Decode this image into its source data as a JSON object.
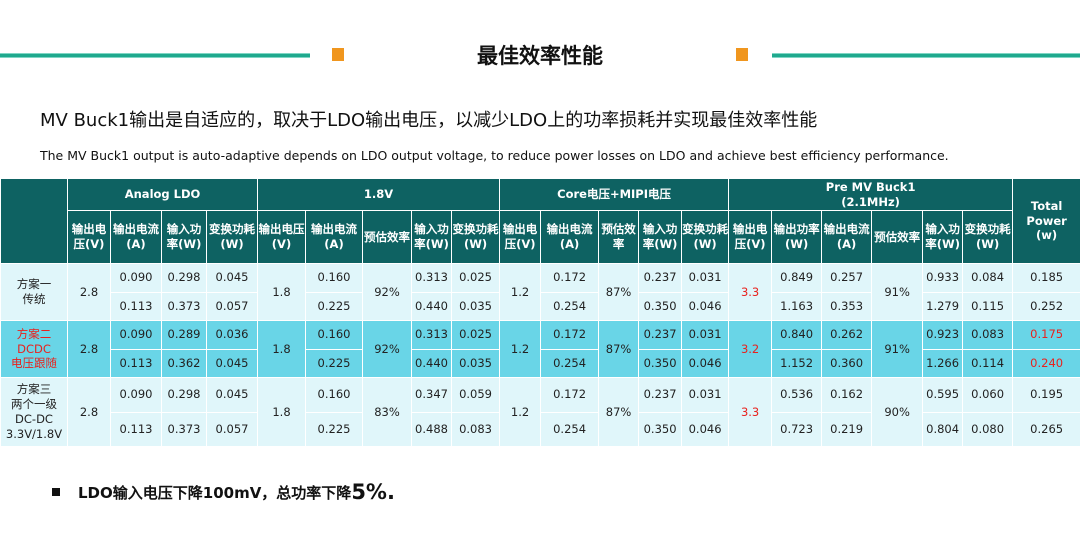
{
  "title": "最佳效率性能",
  "subtitle_cn": "MV Buck1输出是自适应的，取决于LDO输出电压，以减少LDO上的功率损耗并实现最佳效率性能",
  "subtitle_en": "The MV Buck1 output is auto-adaptive depends on LDO output voltage, to reduce power losses on LDO and achieve best efficiency performance.",
  "colors": {
    "header": "#0e6262",
    "row": "#e0f6fa",
    "highlight": "#69d5e7",
    "accent_red": "#e8221e",
    "rule": "#20a98e",
    "marker": "#f0961e"
  },
  "table": {
    "groups": [
      "Analog LDO",
      "1.8V",
      "Core电压+MIPI电压",
      "Pre MV Buck1\n(2.1MHz)",
      "Total Power\n(w)"
    ],
    "columns": [
      "输出电压(V)",
      "输出电流(A)",
      "输入功率(W)",
      "变换功耗(W)",
      "输出电压(V)",
      "输出电流(A)",
      "预估效率",
      "输入功率(W)",
      "变换功耗(W)",
      "输出电压(V)",
      "输出电流(A)",
      "预估效率",
      "输入功率(W)",
      "变换功耗(W)",
      "输出电压(V)",
      "输出功率(W)",
      "输出电流(A)",
      "预估效率",
      "输入功率(W)",
      "变换功耗(W)"
    ],
    "schemes": [
      {
        "label": "方案一\n传统",
        "highlight": false,
        "label_red": false,
        "total_red": false,
        "ldo_vout": "2.8",
        "v18_vout": "1.8",
        "v18_eff": "92%",
        "core_vout": "1.2",
        "core_eff": "87%",
        "pre_vout": "3.3",
        "pre_eff": "91%",
        "rows": [
          [
            "0.090",
            "0.298",
            "0.045",
            "0.160",
            "0.313",
            "0.025",
            "0.172",
            "0.237",
            "0.031",
            "0.849",
            "0.257",
            "0.933",
            "0.084",
            "0.185"
          ],
          [
            "0.113",
            "0.373",
            "0.057",
            "0.225",
            "0.440",
            "0.035",
            "0.254",
            "0.350",
            "0.046",
            "1.163",
            "0.353",
            "1.279",
            "0.115",
            "0.252"
          ]
        ]
      },
      {
        "label": "方案二\nDCDC\n电压跟随",
        "highlight": true,
        "label_red": true,
        "total_red": true,
        "ldo_vout": "2.8",
        "v18_vout": "1.8",
        "v18_eff": "92%",
        "core_vout": "1.2",
        "core_eff": "87%",
        "pre_vout": "3.2",
        "pre_eff": "91%",
        "rows": [
          [
            "0.090",
            "0.289",
            "0.036",
            "0.160",
            "0.313",
            "0.025",
            "0.172",
            "0.237",
            "0.031",
            "0.840",
            "0.262",
            "0.923",
            "0.083",
            "0.175"
          ],
          [
            "0.113",
            "0.362",
            "0.045",
            "0.225",
            "0.440",
            "0.035",
            "0.254",
            "0.350",
            "0.046",
            "1.152",
            "0.360",
            "1.266",
            "0.114",
            "0.240"
          ]
        ]
      },
      {
        "label": "方案三\n两个一级\nDC-DC\n3.3V/1.8V",
        "highlight": false,
        "label_red": false,
        "total_red": false,
        "ldo_vout": "2.8",
        "v18_vout": "1.8",
        "v18_eff": "83%",
        "core_vout": "1.2",
        "core_eff": "87%",
        "pre_vout": "3.3",
        "pre_eff": "90%",
        "rows": [
          [
            "0.090",
            "0.298",
            "0.045",
            "0.160",
            "0.347",
            "0.059",
            "0.172",
            "0.237",
            "0.031",
            "0.536",
            "0.162",
            "0.595",
            "0.060",
            "0.195"
          ],
          [
            "0.113",
            "0.373",
            "0.057",
            "0.225",
            "0.488",
            "0.083",
            "0.254",
            "0.350",
            "0.046",
            "0.723",
            "0.219",
            "0.804",
            "0.080",
            "0.265"
          ]
        ]
      }
    ]
  },
  "note": {
    "text": "LDO输入电压下降100mV，总功率下降",
    "value": "5%."
  }
}
